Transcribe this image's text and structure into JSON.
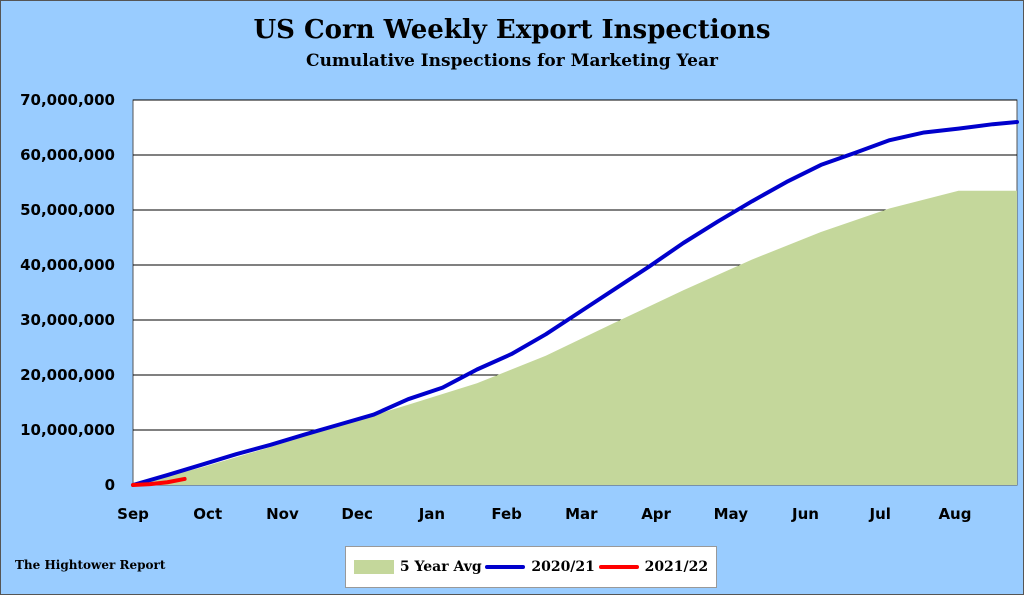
{
  "chart_data": {
    "type": "area",
    "title": "US Corn Weekly Export Inspections",
    "subtitle": "Cumulative  Inspections for Marketing Year",
    "source": "The Hightower Report",
    "x_tick_labels": [
      "Sep",
      "Oct",
      "Nov",
      "Dec",
      "Jan",
      "Feb",
      "Mar",
      "Apr",
      "May",
      "Jun",
      "Jul",
      "Aug"
    ],
    "ylim": [
      0,
      70000000
    ],
    "y_tick_values": [
      0,
      10000000,
      20000000,
      30000000,
      40000000,
      50000000,
      60000000,
      70000000
    ],
    "y_tick_labels": [
      "0",
      "10,000,000",
      "20,000,000",
      "30,000,000",
      "40,000,000",
      "50,000,000",
      "60,000,000",
      "70,000,000"
    ],
    "grid": "horizontal",
    "legend_position": "bottom",
    "series": [
      {
        "name": "5 Year Avg",
        "style": "area",
        "color": "#c4d79b",
        "x_weeks": [
          0,
          4,
          8,
          12,
          16,
          20,
          24,
          28,
          32,
          36,
          40,
          44,
          48,
          51.4
        ],
        "values": [
          0,
          3200000,
          6900000,
          10800000,
          14600000,
          18500000,
          23500000,
          29500000,
          35400000,
          41000000,
          46000000,
          50300000,
          53500000,
          53500000
        ]
      },
      {
        "name": "2020/21",
        "style": "line",
        "color": "#0000cc",
        "x_weeks": [
          0,
          2,
          4,
          6,
          8,
          10,
          12,
          14,
          16,
          18,
          20,
          22,
          24,
          26,
          28,
          30,
          32,
          34,
          36,
          38,
          40,
          42,
          44,
          46,
          48,
          50,
          51.4
        ],
        "values": [
          0,
          1800000,
          3700000,
          5600000,
          7300000,
          9200000,
          11000000,
          12800000,
          15600000,
          17700000,
          21000000,
          23800000,
          27400000,
          31500000,
          35600000,
          39700000,
          44000000,
          47900000,
          51600000,
          55100000,
          58200000,
          60400000,
          62700000,
          64100000,
          64800000,
          65600000,
          66000000
        ]
      },
      {
        "name": "2021/22",
        "style": "line",
        "color": "#ff0000",
        "x_weeks": [
          0,
          1,
          2,
          3
        ],
        "values": [
          0,
          150000,
          500000,
          1100000
        ]
      }
    ]
  }
}
